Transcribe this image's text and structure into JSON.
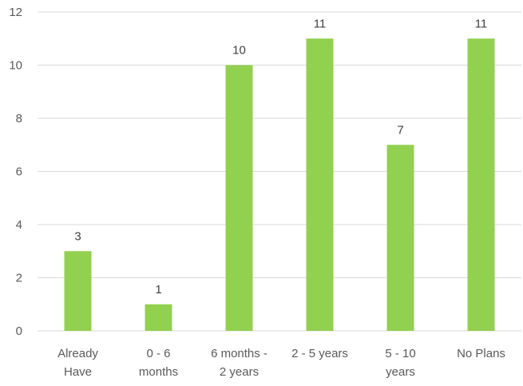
{
  "chart_data": {
    "type": "bar",
    "categories": [
      "Already Have",
      "0 - 6 months",
      "6 months - 2 years",
      "2 - 5 years",
      "5 - 10 years",
      "No Plans"
    ],
    "category_label_lines": [
      [
        "Already",
        "Have"
      ],
      [
        "0 - 6",
        "months"
      ],
      [
        "6 months -",
        "2 years"
      ],
      [
        "2 - 5 years"
      ],
      [
        "5 - 10",
        "years"
      ],
      [
        "No Plans"
      ]
    ],
    "values": [
      3,
      1,
      10,
      11,
      7,
      11
    ],
    "ylim": [
      0,
      12
    ],
    "yticks": [
      0,
      2,
      4,
      6,
      8,
      10,
      12
    ],
    "grid": true,
    "data_labels": true,
    "bar_color": "#92d050",
    "title": "",
    "xlabel": "",
    "ylabel": ""
  }
}
